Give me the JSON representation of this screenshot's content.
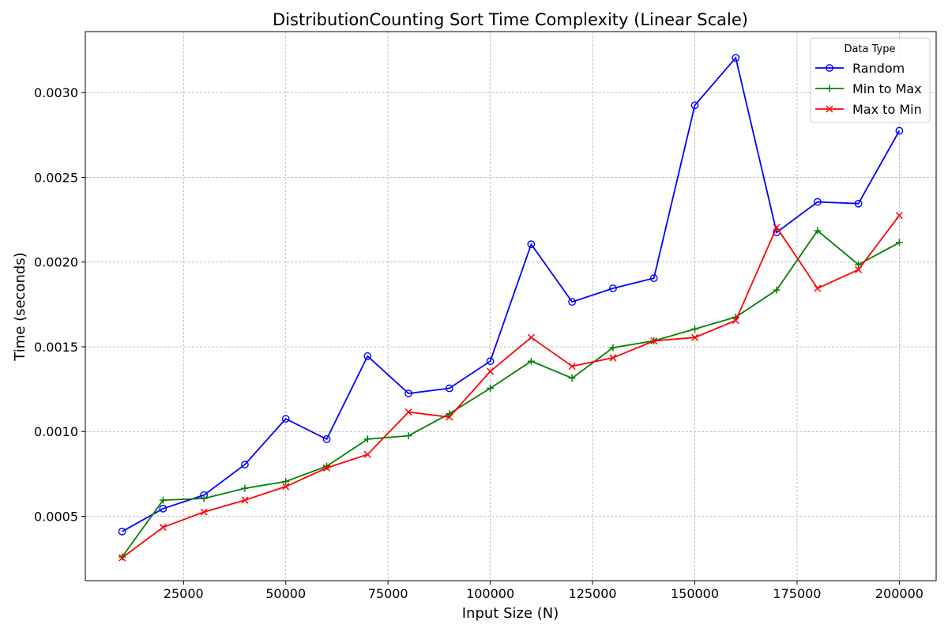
{
  "chart_data": {
    "type": "line",
    "title": "DistributionCounting Sort Time Complexity (Linear Scale)",
    "xlabel": "Input Size (N)",
    "ylabel": "Time (seconds)",
    "xlim": [
      1000,
      209000
    ],
    "ylim": [
      0.00012,
      0.00336
    ],
    "x_ticks": [
      25000,
      50000,
      75000,
      100000,
      125000,
      150000,
      175000,
      200000
    ],
    "x_tick_labels": [
      "25000",
      "50000",
      "75000",
      "100000",
      "125000",
      "150000",
      "175000",
      "200000"
    ],
    "y_ticks": [
      0.0005,
      0.001,
      0.0015,
      0.002,
      0.0025,
      0.003
    ],
    "y_tick_labels": [
      "0.0005",
      "0.0010",
      "0.0015",
      "0.0020",
      "0.0025",
      "0.0030"
    ],
    "grid": true,
    "legend": {
      "title": "Data Type",
      "placement": "top-right"
    },
    "x": [
      10000,
      20000,
      30000,
      40000,
      50000,
      60000,
      70000,
      80000,
      90000,
      100000,
      110000,
      120000,
      130000,
      140000,
      150000,
      160000,
      170000,
      180000,
      190000,
      200000
    ],
    "series": [
      {
        "name": "Random",
        "color": "#0000ff",
        "marker": "circle",
        "values": [
          0.00041,
          0.000545,
          0.000625,
          0.000805,
          0.001075,
          0.000955,
          0.001445,
          0.001225,
          0.001255,
          0.001415,
          0.002105,
          0.001765,
          0.001845,
          0.001905,
          0.002925,
          0.003205,
          0.002175,
          0.002355,
          0.002345,
          0.002775
        ]
      },
      {
        "name": "Min to Max",
        "color": "#008000",
        "marker": "plus",
        "values": [
          0.00026,
          0.000595,
          0.000605,
          0.000665,
          0.000705,
          0.000795,
          0.000955,
          0.000975,
          0.001105,
          0.001255,
          0.001415,
          0.001315,
          0.001495,
          0.001535,
          0.001605,
          0.001675,
          0.001835,
          0.002185,
          0.001985,
          0.002115
        ]
      },
      {
        "name": "Max to Min",
        "color": "#ff0000",
        "marker": "x",
        "values": [
          0.000255,
          0.000435,
          0.000525,
          0.000595,
          0.000675,
          0.000785,
          0.000865,
          0.001115,
          0.001085,
          0.001355,
          0.001555,
          0.001385,
          0.001435,
          0.001535,
          0.001555,
          0.001655,
          0.002205,
          0.001845,
          0.001955,
          0.002275
        ]
      }
    ]
  }
}
